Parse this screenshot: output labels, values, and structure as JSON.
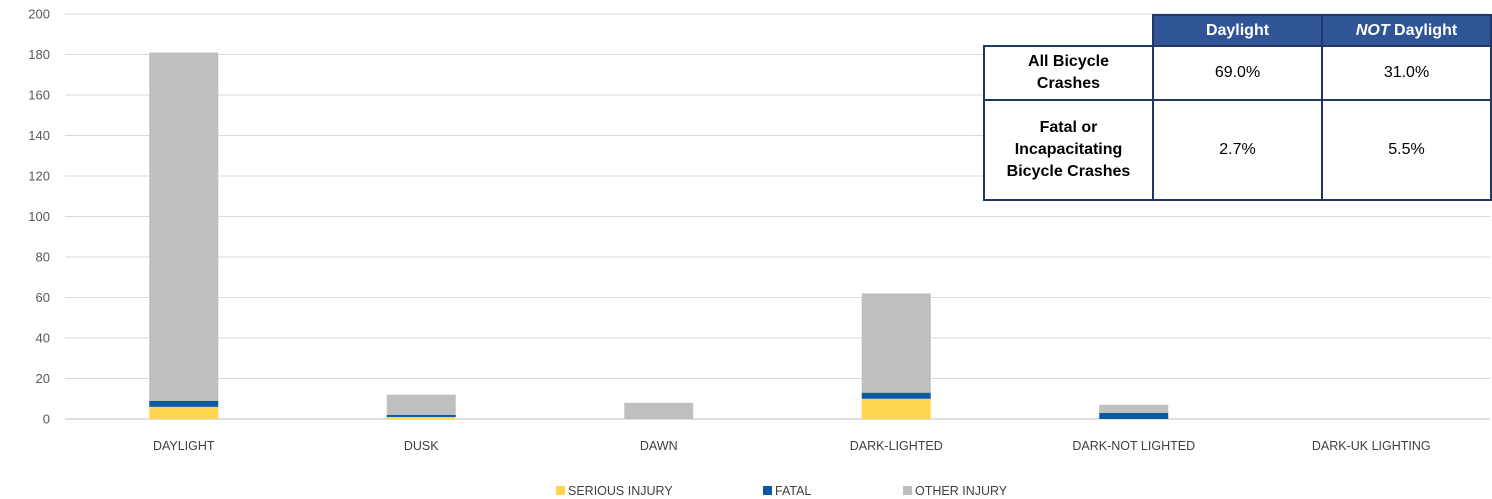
{
  "chart_data": {
    "type": "bar",
    "stacked": true,
    "categories": [
      "DAYLIGHT",
      "DUSK",
      "DAWN",
      "DARK-LIGHTED",
      "DARK-NOT LIGHTED",
      "DARK-UK LIGHTING"
    ],
    "series": [
      {
        "name": "SERIOUS INJURY",
        "color": "#ffd54f",
        "values": [
          6,
          1,
          0,
          10,
          0,
          0
        ]
      },
      {
        "name": "FATAL",
        "color": "#0b5aa2",
        "values": [
          3,
          1,
          0,
          3,
          3,
          0
        ]
      },
      {
        "name": "OTHER INJURY",
        "color": "#bfbfbf",
        "values": [
          172,
          10,
          8,
          49,
          4,
          0
        ]
      }
    ],
    "ylim": [
      0,
      200
    ],
    "yticks": [
      0,
      20,
      40,
      60,
      80,
      100,
      120,
      140,
      160,
      180,
      200
    ],
    "grid": true,
    "legend": "bottom"
  },
  "table": {
    "headers": [
      "Daylight",
      "NOT",
      " Daylight"
    ],
    "rows": [
      {
        "label_line1": "All Bicycle",
        "label_line2": "Crashes",
        "daylight": "69.0%",
        "not_daylight": "31.0%"
      },
      {
        "label_line1": "Fatal or Incapacitating",
        "label_line2": "Bicycle Crashes",
        "daylight": "2.7%",
        "not_daylight": "5.5%"
      }
    ]
  }
}
